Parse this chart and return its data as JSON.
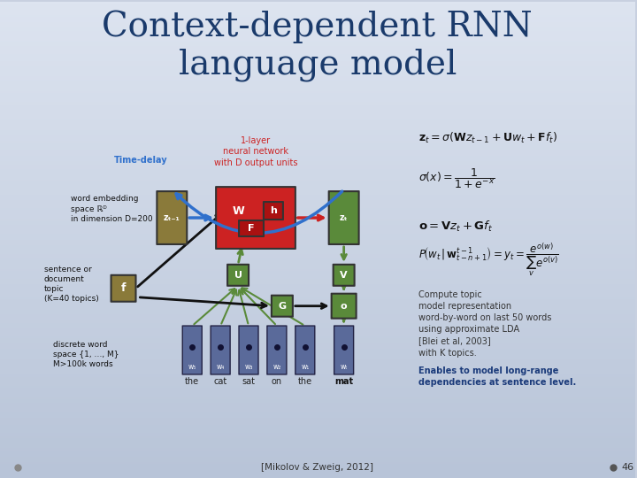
{
  "title_line1": "Context-dependent RNN",
  "title_line2": "language model",
  "title_color": "#1a3a6b",
  "bg_color_top": "#d0d8e8",
  "bg_color_bottom": "#b0b8cc",
  "eq1": "z_t = \\sigma(\\mathbf{W}z_{t-1} + \\mathbf{U}w_t + \\mathbf{F}f_t)",
  "eq2": "\\sigma(x)= \\frac{1}{1+e^{-x}}",
  "eq3": "\\mathbf{o} = \\mathbf{V}z_t + \\mathbf{G}f_t",
  "eq4": "P\\left(w_t\\,|\\,\\mathbf{w}_{t-n+1}^{t-1}\\right)= y_t = \\frac{e^{o(w)}}{\\sum_v e^{o(v)}}",
  "label_timedelay": "Time-delay",
  "label_nn": "1-layer\nneural network\nwith D output units",
  "label_wordembedding": "word embedding\nspace ℝᴰ\nin dimension D=200",
  "label_sentence": "sentence or\ndocument\ntopic\n(K=40 topics)",
  "label_discrete": "discrete word\nspace {1, …, M}\nM>100k words",
  "label_words": [
    "the",
    "cat",
    "sat",
    "on",
    "the",
    "mat"
  ],
  "label_word_indices": [
    "w₅",
    "w₄",
    "w₃",
    "w₂",
    "w₁",
    "wₜ"
  ],
  "label_ref": "[Mikolov & Zweig, 2012]",
  "label_slide": "46",
  "desc_text": "Compute topic\nmodel representation\nword-by-word on last 50 words\nusing approximate LDA\n[Blei et al, 2003]\nwith K topics.",
  "desc_bold": "Enables to model long-range\ndependencies at sentence level.",
  "node_color_green": "#5a8a3a",
  "node_color_red": "#cc2222",
  "node_color_olive": "#8a7a3a",
  "node_color_blue_dark": "#1a3a7a",
  "node_color_blue_word": "#5a6a9a",
  "arrow_color_blue": "#3070cc",
  "arrow_color_green": "#5a8a3a",
  "arrow_color_black": "#111111",
  "arrow_color_red": "#cc2222"
}
